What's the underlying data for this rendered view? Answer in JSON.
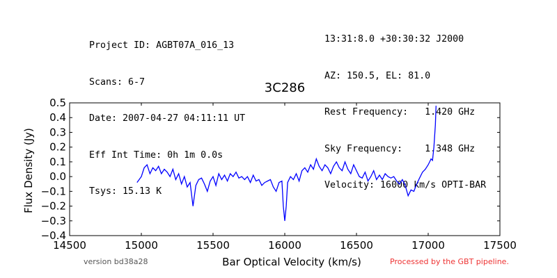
{
  "header": {
    "left_lines": [
      "Project ID: AGBT07A_016_13",
      "Scans: 6-7",
      "Date: 2007-04-27 04:11:11 UT",
      "Eff Int Time: 0h 1m 0.0s",
      "Tsys: 15.13 K"
    ],
    "right_lines": [
      "13:31:8.0 +30:30:32 J2000",
      "AZ: 150.5, EL: 81.0",
      "Rest Frequency:   1.420 GHz",
      "Sky Frequency:    1.348 GHz",
      "Velocity: 16000 km/s OPTI-BAR"
    ]
  },
  "footer": {
    "version": "version bd38a28",
    "pipeline": "Processed by the GBT pipeline."
  },
  "colors": {
    "series": "#0000ff",
    "pipeline_text": "#ee3333",
    "version_text": "#555555"
  },
  "chart_data": {
    "type": "line",
    "title": "3C286",
    "xlabel": "Bar Optical Velocity (km/s)",
    "ylabel": "Flux Density (Jy)",
    "xlim": [
      14500,
      17500
    ],
    "ylim": [
      -0.4,
      0.5
    ],
    "xticks": [
      "14500",
      "15000",
      "15500",
      "16000",
      "16500",
      "17000",
      "17500"
    ],
    "yticks": [
      "−0.4",
      "−0.3",
      "−0.2",
      "−0.1",
      "0.0",
      "0.1",
      "0.2",
      "0.3",
      "0.4",
      "0.5"
    ],
    "grid": false,
    "series": [
      {
        "color": "#0000ff",
        "x": [
          14970,
          15000,
          15020,
          15040,
          15060,
          15080,
          15100,
          15120,
          15140,
          15160,
          15180,
          15200,
          15220,
          15240,
          15260,
          15280,
          15300,
          15320,
          15340,
          15350,
          15360,
          15380,
          15400,
          15420,
          15440,
          15460,
          15480,
          15500,
          15520,
          15540,
          15560,
          15580,
          15600,
          15620,
          15640,
          15660,
          15680,
          15700,
          15720,
          15740,
          15760,
          15780,
          15800,
          15820,
          15840,
          15860,
          15880,
          15900,
          15920,
          15940,
          15960,
          15980,
          15990,
          16000,
          16010,
          16020,
          16040,
          16060,
          16080,
          16100,
          16120,
          16140,
          16160,
          16180,
          16200,
          16220,
          16240,
          16260,
          16280,
          16300,
          16320,
          16340,
          16360,
          16380,
          16400,
          16420,
          16440,
          16460,
          16480,
          16500,
          16520,
          16540,
          16560,
          16580,
          16600,
          16620,
          16640,
          16660,
          16680,
          16700,
          16720,
          16740,
          16760,
          16780,
          16800,
          16820,
          16840,
          16860,
          16880,
          16900,
          16920,
          16940,
          16960,
          16980,
          17000,
          17010,
          17020,
          17030,
          17040,
          17050,
          17055
        ],
        "y": [
          -0.04,
          0.0,
          0.06,
          0.08,
          0.02,
          0.06,
          0.04,
          0.07,
          0.02,
          0.05,
          0.03,
          0.0,
          0.05,
          -0.02,
          0.02,
          -0.05,
          0.0,
          -0.07,
          -0.04,
          -0.12,
          -0.2,
          -0.06,
          -0.02,
          -0.01,
          -0.05,
          -0.1,
          -0.03,
          0.0,
          -0.06,
          0.02,
          -0.02,
          0.01,
          -0.03,
          0.02,
          0.0,
          0.03,
          -0.01,
          0.0,
          -0.02,
          0.0,
          -0.04,
          0.01,
          -0.03,
          -0.02,
          -0.06,
          -0.04,
          -0.03,
          -0.02,
          -0.07,
          -0.1,
          -0.04,
          -0.03,
          -0.2,
          -0.3,
          -0.2,
          -0.04,
          0.0,
          -0.02,
          0.02,
          -0.03,
          0.04,
          0.06,
          0.03,
          0.08,
          0.05,
          0.12,
          0.07,
          0.04,
          0.08,
          0.06,
          0.02,
          0.07,
          0.1,
          0.06,
          0.04,
          0.1,
          0.05,
          0.02,
          0.08,
          0.04,
          0.0,
          -0.01,
          0.03,
          -0.03,
          0.0,
          0.04,
          -0.02,
          0.01,
          -0.02,
          0.02,
          0.0,
          -0.01,
          0.0,
          -0.03,
          -0.05,
          -0.02,
          -0.06,
          -0.13,
          -0.09,
          -0.1,
          -0.05,
          -0.01,
          0.03,
          0.05,
          0.08,
          0.1,
          0.12,
          0.11,
          0.2,
          0.35,
          0.48
        ]
      }
    ]
  }
}
